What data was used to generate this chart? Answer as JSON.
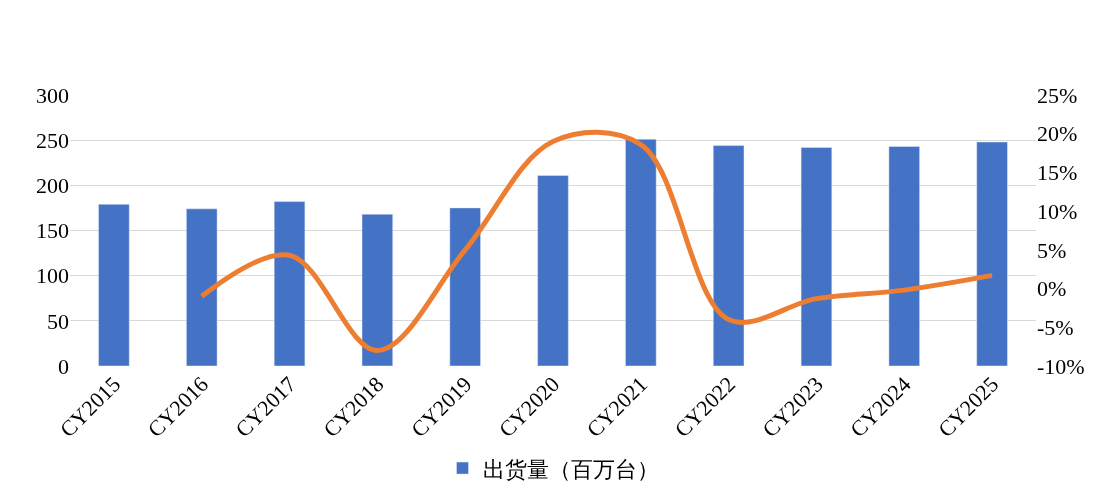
{
  "chart_data": {
    "type": "bar",
    "categories": [
      "CY2015",
      "CY2016",
      "CY2017",
      "CY2018",
      "CY2019",
      "CY2020",
      "CY2021",
      "CY2022",
      "CY2023",
      "CY2024",
      "CY2025"
    ],
    "series": [
      {
        "name": "出货量（百万台）",
        "color": "#4472c4",
        "values": [
          179,
          174,
          182,
          168,
          175,
          211,
          251,
          244,
          242,
          243,
          248
        ]
      },
      {
        "type": "line",
        "axis": "y2",
        "color": "#ed7d31",
        "values": [
          null,
          -1,
          4.3,
          -8,
          5,
          19,
          18.6,
          -4,
          -1.3,
          -0.2,
          1.7
        ]
      }
    ],
    "ylim": [
      0,
      300
    ],
    "yticks": [
      0,
      50,
      100,
      150,
      200,
      250,
      300
    ],
    "y2lim": [
      -10,
      25
    ],
    "y2ticks": [
      {
        "value": -10,
        "label": "-10%"
      },
      {
        "value": -5,
        "label": "-5%"
      },
      {
        "value": 0,
        "label": "0%"
      },
      {
        "value": 5,
        "label": "5%"
      },
      {
        "value": 10,
        "label": "10%"
      },
      {
        "value": 15,
        "label": "15%"
      },
      {
        "value": 20,
        "label": "20%"
      },
      {
        "value": 25,
        "label": "25%"
      }
    ],
    "grid": "y",
    "legend": "bottom",
    "marker": "none",
    "line_style": "solid"
  }
}
